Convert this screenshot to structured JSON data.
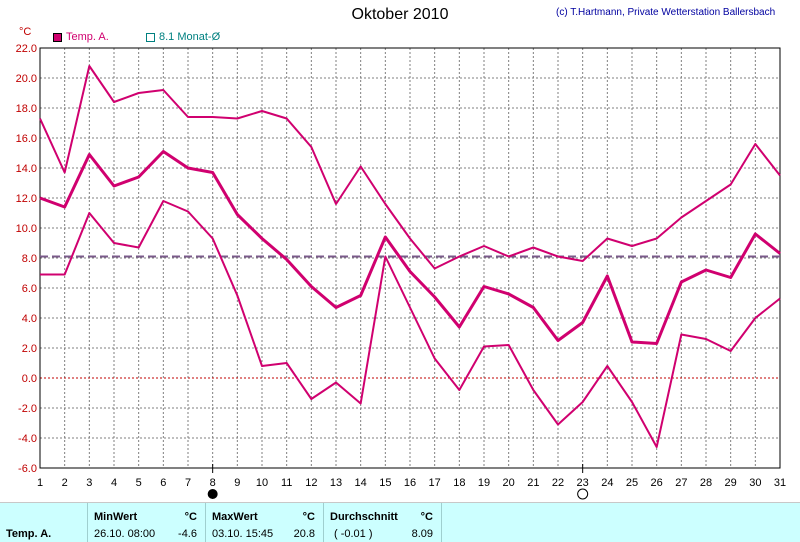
{
  "header": {
    "title": "Oktober 2010",
    "copyright": "(c) T.Hartmann, Private Wetterstation Ballersbach",
    "unit": "°C"
  },
  "legend": {
    "temp_label": "Temp. A.",
    "mean_label": "8.1 Monat-Ø"
  },
  "colors": {
    "series": "#d0006f",
    "mean_line": "#7a5a8a",
    "grid": "#7f7f7f",
    "zero_line": "#c00000",
    "footer_bg": "#ccffff"
  },
  "chart_data": {
    "type": "line",
    "title": "Oktober 2010",
    "ylabel": "°C",
    "x": [
      1,
      2,
      3,
      4,
      5,
      6,
      7,
      8,
      9,
      10,
      11,
      12,
      13,
      14,
      15,
      16,
      17,
      18,
      19,
      20,
      21,
      22,
      23,
      24,
      25,
      26,
      27,
      28,
      29,
      30,
      31
    ],
    "xlim": [
      1,
      31
    ],
    "ylim": [
      -6,
      22
    ],
    "yticks": [
      "22.0",
      "20.0",
      "18.0",
      "16.0",
      "14.0",
      "12.0",
      "10.0",
      "8.0",
      "6.0",
      "4.0",
      "2.0",
      "0.0",
      "-2.0",
      "-4.0",
      "-6.0"
    ],
    "grid": true,
    "series": [
      {
        "name": "Max",
        "values": [
          17.3,
          13.7,
          20.8,
          18.4,
          19.0,
          19.2,
          17.4,
          17.4,
          17.3,
          17.8,
          17.3,
          15.4,
          11.6,
          14.1,
          11.6,
          9.3,
          7.3,
          8.1,
          8.8,
          8.1,
          8.7,
          8.1,
          7.8,
          9.3,
          8.8,
          9.3,
          10.7,
          11.8,
          12.9,
          15.6,
          13.5
        ]
      },
      {
        "name": "Temp. A.",
        "values": [
          12.0,
          11.4,
          14.9,
          12.8,
          13.4,
          15.1,
          14.0,
          13.7,
          10.9,
          9.3,
          7.9,
          6.1,
          4.7,
          5.5,
          9.4,
          7.1,
          5.4,
          3.4,
          6.1,
          5.6,
          4.7,
          2.5,
          3.7,
          6.8,
          2.4,
          2.3,
          6.4,
          7.2,
          6.7,
          9.6,
          8.3
        ]
      },
      {
        "name": "Min",
        "values": [
          6.9,
          6.9,
          11.0,
          9.0,
          8.7,
          11.8,
          11.1,
          9.3,
          5.5,
          0.8,
          1.0,
          -1.4,
          -0.3,
          -1.7,
          8.1,
          4.7,
          1.3,
          -0.8,
          2.1,
          2.2,
          -0.8,
          -3.1,
          -1.6,
          0.8,
          -1.6,
          -4.6,
          2.9,
          2.6,
          1.8,
          4.0,
          5.3
        ]
      }
    ],
    "mean_value": 8.1,
    "markers": {
      "filled_day": 8,
      "open_day": 23
    }
  },
  "stats": {
    "row_label": "Temp. A.",
    "min_header": "MinWert",
    "min_unit": "°C",
    "min_datetime": "26.10.  08:00",
    "min_value": "-4.6",
    "max_header": "MaxWert",
    "max_unit": "°C",
    "max_datetime": "03.10.  15:45",
    "max_value": "20.8",
    "avg_header": "Durchschnitt",
    "avg_unit": "°C",
    "avg_delta": "( -0.01 )",
    "avg_value": "8.09"
  }
}
